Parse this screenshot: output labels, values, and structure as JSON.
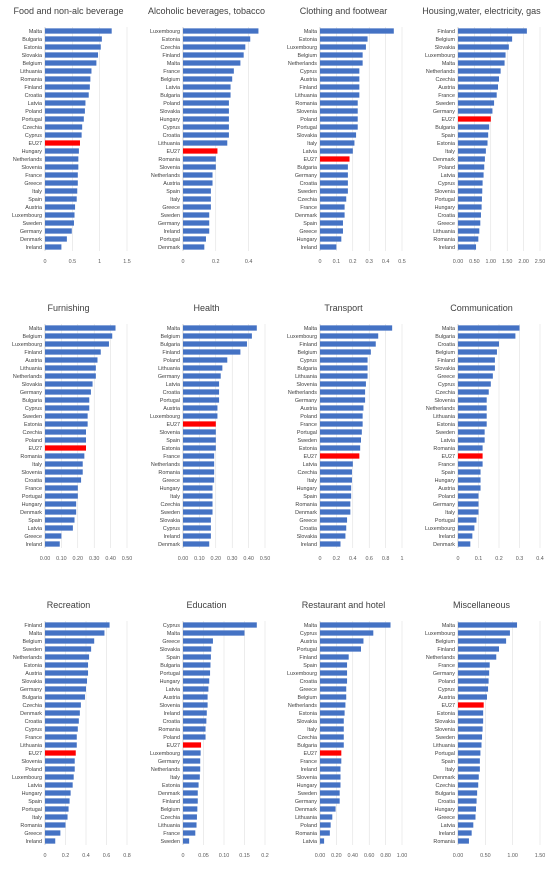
{
  "chart_data": [
    {
      "type": "bar",
      "orientation": "horizontal",
      "title": "Food and non-alc beverage",
      "xlim": [
        0,
        1.5
      ],
      "xticks": [
        0,
        0.5,
        1,
        1.5
      ],
      "xtick_labels": [
        "0",
        "0.5",
        "1",
        "1.5"
      ],
      "categories": [
        "Malta",
        "Bulgaria",
        "Estonia",
        "Slovakia",
        "Belgium",
        "Lithuania",
        "Romania",
        "Finland",
        "Croatia",
        "Latvia",
        "Poland",
        "Portugal",
        "Czechia",
        "Cyprus",
        "EU27",
        "Hungary",
        "Netherlands",
        "Slovenia",
        "France",
        "Greece",
        "Italy",
        "Spain",
        "Austria",
        "Luxembourg",
        "Sweden",
        "Germany",
        "Denmark",
        "Ireland"
      ],
      "values": [
        1.22,
        1.04,
        1.02,
        0.97,
        0.94,
        0.85,
        0.83,
        0.82,
        0.8,
        0.74,
        0.73,
        0.71,
        0.68,
        0.67,
        0.64,
        0.62,
        0.61,
        0.61,
        0.6,
        0.6,
        0.59,
        0.58,
        0.55,
        0.54,
        0.53,
        0.49,
        0.4,
        0.3
      ],
      "highlight": "EU27",
      "bar_color": "#4472c4",
      "highlight_color": "#ff0000"
    },
    {
      "type": "bar",
      "orientation": "horizontal",
      "title": "Alcoholic beverages, tobacco",
      "xlim": [
        0,
        0.5
      ],
      "xticks": [
        0,
        0.2,
        0.4
      ],
      "xtick_labels": [
        "0",
        "0.2",
        "0.4"
      ],
      "categories": [
        "Luxembourg",
        "Estonia",
        "Czechia",
        "Finland",
        "Malta",
        "France",
        "Belgium",
        "Latvia",
        "Bulgaria",
        "Poland",
        "Slovakia",
        "Hungary",
        "Cyprus",
        "Croatia",
        "Lithuania",
        "EU27",
        "Romania",
        "Slovenia",
        "Netherlands",
        "Austria",
        "Spain",
        "Italy",
        "Greece",
        "Sweden",
        "Germany",
        "Ireland",
        "Portugal",
        "Denmark"
      ],
      "values": [
        0.46,
        0.41,
        0.38,
        0.37,
        0.35,
        0.31,
        0.3,
        0.29,
        0.29,
        0.28,
        0.28,
        0.28,
        0.28,
        0.28,
        0.27,
        0.21,
        0.2,
        0.2,
        0.18,
        0.18,
        0.17,
        0.17,
        0.17,
        0.16,
        0.16,
        0.16,
        0.14,
        0.13
      ],
      "highlight": "EU27",
      "bar_color": "#4472c4",
      "highlight_color": "#ff0000"
    },
    {
      "type": "bar",
      "orientation": "horizontal",
      "title": "Clothing and footwear",
      "xlim": [
        0,
        0.5
      ],
      "xticks": [
        0,
        0.1,
        0.2,
        0.3,
        0.4,
        0.5
      ],
      "xtick_labels": [
        "0",
        "0.1",
        "0.2",
        "0.3",
        "0.4",
        "0.5"
      ],
      "categories": [
        "Malta",
        "Estonia",
        "Luxembourg",
        "Belgium",
        "Netherlands",
        "Cyprus",
        "Austria",
        "Finland",
        "Lithuania",
        "Romania",
        "Slovenia",
        "Poland",
        "Portugal",
        "Slovakia",
        "Italy",
        "Latvia",
        "EU27",
        "Bulgaria",
        "Germany",
        "Croatia",
        "Sweden",
        "Czechia",
        "France",
        "Denmark",
        "Spain",
        "Greece",
        "Hungary",
        "Ireland"
      ],
      "values": [
        0.45,
        0.29,
        0.28,
        0.26,
        0.26,
        0.24,
        0.24,
        0.24,
        0.24,
        0.23,
        0.23,
        0.23,
        0.23,
        0.22,
        0.21,
        0.2,
        0.18,
        0.17,
        0.17,
        0.17,
        0.17,
        0.16,
        0.15,
        0.15,
        0.14,
        0.14,
        0.13,
        0.1
      ],
      "highlight": "EU27",
      "bar_color": "#4472c4",
      "highlight_color": "#ff0000"
    },
    {
      "type": "bar",
      "orientation": "horizontal",
      "title": "Housing,water, electricity, gas",
      "xlim": [
        0,
        2.5
      ],
      "xticks": [
        0,
        0.5,
        1,
        1.5,
        2,
        2.5
      ],
      "xtick_labels": [
        "0.00",
        "0.50",
        "1.00",
        "1.50",
        "2.00",
        "2.50"
      ],
      "categories": [
        "Finland",
        "Belgium",
        "Slovakia",
        "Luxembourg",
        "Malta",
        "Netherlands",
        "Czechia",
        "Austria",
        "France",
        "Sweden",
        "Germany",
        "EU27",
        "Bulgaria",
        "Spain",
        "Estonia",
        "Italy",
        "Denmark",
        "Poland",
        "Latvia",
        "Cyprus",
        "Slovenia",
        "Portugal",
        "Hungary",
        "Croatia",
        "Greece",
        "Lithuania",
        "Romania",
        "Ireland"
      ],
      "values": [
        2.1,
        1.65,
        1.55,
        1.45,
        1.42,
        1.3,
        1.25,
        1.22,
        1.18,
        1.1,
        1.05,
        1.0,
        0.95,
        0.92,
        0.9,
        0.85,
        0.82,
        0.8,
        0.78,
        0.75,
        0.74,
        0.73,
        0.72,
        0.7,
        0.68,
        0.65,
        0.62,
        0.55
      ],
      "highlight": "EU27",
      "bar_color": "#4472c4",
      "highlight_color": "#ff0000"
    },
    {
      "type": "bar",
      "orientation": "horizontal",
      "title": "Furnishing",
      "xlim": [
        0,
        0.5
      ],
      "xticks": [
        0,
        0.1,
        0.2,
        0.3,
        0.4,
        0.5
      ],
      "xtick_labels": [
        "0.00",
        "0.10",
        "0.20",
        "0.30",
        "0.40",
        "0.50"
      ],
      "categories": [
        "Malta",
        "Belgium",
        "Luxembourg",
        "Finland",
        "Austria",
        "Lithuania",
        "Netherlands",
        "Slovakia",
        "Germany",
        "Bulgaria",
        "Cyprus",
        "Sweden",
        "Estonia",
        "Czechia",
        "Poland",
        "EU27",
        "Romania",
        "Italy",
        "Slovenia",
        "Croatia",
        "France",
        "Portugal",
        "Hungary",
        "Denmark",
        "Spain",
        "Latvia",
        "Greece",
        "Ireland"
      ],
      "values": [
        0.43,
        0.41,
        0.39,
        0.34,
        0.32,
        0.31,
        0.31,
        0.29,
        0.28,
        0.27,
        0.27,
        0.26,
        0.26,
        0.25,
        0.25,
        0.25,
        0.24,
        0.23,
        0.23,
        0.22,
        0.2,
        0.2,
        0.19,
        0.19,
        0.18,
        0.17,
        0.1,
        0.09
      ],
      "highlight": "EU27",
      "bar_color": "#4472c4",
      "highlight_color": "#ff0000"
    },
    {
      "type": "bar",
      "orientation": "horizontal",
      "title": "Health",
      "xlim": [
        0,
        0.5
      ],
      "xticks": [
        0,
        0.1,
        0.2,
        0.3,
        0.4,
        0.5
      ],
      "xtick_labels": [
        "0.00",
        "0.10",
        "0.20",
        "0.30",
        "0.40",
        "0.50"
      ],
      "categories": [
        "Malta",
        "Belgium",
        "Bulgaria",
        "Finland",
        "Poland",
        "Lithuania",
        "Germany",
        "Latvia",
        "Croatia",
        "Portugal",
        "Austria",
        "Luxembourg",
        "EU27",
        "Slovenia",
        "Spain",
        "Estonia",
        "France",
        "Netherlands",
        "Romania",
        "Greece",
        "Hungary",
        "Italy",
        "Czechia",
        "Sweden",
        "Slovakia",
        "Cyprus",
        "Ireland",
        "Denmark"
      ],
      "values": [
        0.45,
        0.42,
        0.39,
        0.35,
        0.27,
        0.24,
        0.23,
        0.22,
        0.22,
        0.22,
        0.21,
        0.21,
        0.2,
        0.2,
        0.2,
        0.2,
        0.19,
        0.19,
        0.19,
        0.19,
        0.18,
        0.18,
        0.18,
        0.18,
        0.17,
        0.17,
        0.17,
        0.16
      ],
      "highlight": "EU27",
      "bar_color": "#4472c4",
      "highlight_color": "#ff0000"
    },
    {
      "type": "bar",
      "orientation": "horizontal",
      "title": "Transport",
      "xlim": [
        0,
        1
      ],
      "xticks": [
        0,
        0.2,
        0.4,
        0.6,
        0.8,
        1
      ],
      "xtick_labels": [
        "0",
        "0.2",
        "0.4",
        "0.6",
        "0.8",
        "1"
      ],
      "categories": [
        "Malta",
        "Luxembourg",
        "Finland",
        "Belgium",
        "Cyprus",
        "Bulgaria",
        "Lithuania",
        "Slovenia",
        "Netherlands",
        "Germany",
        "Austria",
        "Poland",
        "France",
        "Portugal",
        "Sweden",
        "Estonia",
        "EU27",
        "Latvia",
        "Czechia",
        "Italy",
        "Hungary",
        "Spain",
        "Romania",
        "Denmark",
        "Greece",
        "Croatia",
        "Slovakia",
        "Ireland"
      ],
      "values": [
        0.88,
        0.71,
        0.68,
        0.62,
        0.58,
        0.58,
        0.58,
        0.56,
        0.55,
        0.55,
        0.53,
        0.52,
        0.52,
        0.51,
        0.5,
        0.49,
        0.48,
        0.4,
        0.39,
        0.39,
        0.38,
        0.38,
        0.37,
        0.37,
        0.33,
        0.32,
        0.31,
        0.25
      ],
      "highlight": "EU27",
      "bar_color": "#4472c4",
      "highlight_color": "#ff0000"
    },
    {
      "type": "bar",
      "orientation": "horizontal",
      "title": "Communication",
      "xlim": [
        0,
        0.4
      ],
      "xticks": [
        0,
        0.1,
        0.2,
        0.3,
        0.4
      ],
      "xtick_labels": [
        "0",
        "0.1",
        "0.2",
        "0.3",
        "0.4"
      ],
      "categories": [
        "Malta",
        "Bulgaria",
        "Croatia",
        "Belgium",
        "Finland",
        "Slovakia",
        "Greece",
        "Cyprus",
        "Czechia",
        "Slovenia",
        "Netherlands",
        "Lithuania",
        "Estonia",
        "Sweden",
        "Latvia",
        "Romania",
        "EU27",
        "France",
        "Spain",
        "Hungary",
        "Austria",
        "Poland",
        "Germany",
        "Italy",
        "Portugal",
        "Luxembourg",
        "Ireland",
        "Denmark"
      ],
      "values": [
        0.3,
        0.28,
        0.2,
        0.19,
        0.18,
        0.18,
        0.17,
        0.16,
        0.15,
        0.14,
        0.14,
        0.14,
        0.14,
        0.13,
        0.13,
        0.12,
        0.12,
        0.12,
        0.11,
        0.11,
        0.11,
        0.1,
        0.1,
        0.1,
        0.09,
        0.08,
        0.07,
        0.06
      ],
      "highlight": "EU27",
      "bar_color": "#4472c4",
      "highlight_color": "#ff0000"
    },
    {
      "type": "bar",
      "orientation": "horizontal",
      "title": "Recreation",
      "xlim": [
        0,
        0.8
      ],
      "xticks": [
        0,
        0.2,
        0.4,
        0.6,
        0.8
      ],
      "xtick_labels": [
        "0",
        "0.2",
        "0.4",
        "0.6",
        "0.8"
      ],
      "categories": [
        "Finland",
        "Malta",
        "Belgium",
        "Sweden",
        "Netherlands",
        "Estonia",
        "Austria",
        "Slovakia",
        "Germany",
        "Bulgaria",
        "Czechia",
        "Denmark",
        "Croatia",
        "Cyprus",
        "France",
        "Lithuania",
        "EU27",
        "Slovenia",
        "Poland",
        "Luxembourg",
        "Latvia",
        "Hungary",
        "Spain",
        "Portugal",
        "Italy",
        "Romania",
        "Greece",
        "Ireland"
      ],
      "values": [
        0.63,
        0.58,
        0.48,
        0.45,
        0.43,
        0.42,
        0.42,
        0.41,
        0.4,
        0.39,
        0.35,
        0.34,
        0.33,
        0.32,
        0.31,
        0.31,
        0.3,
        0.29,
        0.29,
        0.28,
        0.27,
        0.25,
        0.24,
        0.23,
        0.22,
        0.2,
        0.15,
        0.1
      ],
      "highlight": "EU27",
      "bar_color": "#4472c4",
      "highlight_color": "#ff0000"
    },
    {
      "type": "bar",
      "orientation": "horizontal",
      "title": "Education",
      "xlim": [
        0,
        0.2
      ],
      "xticks": [
        0,
        0.05,
        0.1,
        0.15,
        0.2
      ],
      "xtick_labels": [
        "0",
        "0.05",
        "0.10",
        "0.15",
        "0.2"
      ],
      "categories": [
        "Cyprus",
        "Malta",
        "Greece",
        "Slovakia",
        "Spain",
        "Bulgaria",
        "Portugal",
        "Hungary",
        "Latvia",
        "Austria",
        "Slovenia",
        "Ireland",
        "Croatia",
        "Romania",
        "Poland",
        "EU27",
        "Luxembourg",
        "Germany",
        "Netherlands",
        "Italy",
        "Estonia",
        "Denmark",
        "Finland",
        "Belgium",
        "Czechia",
        "Lithuania",
        "France",
        "Sweden"
      ],
      "values": [
        0.18,
        0.15,
        0.073,
        0.069,
        0.068,
        0.067,
        0.066,
        0.064,
        0.062,
        0.06,
        0.06,
        0.058,
        0.057,
        0.055,
        0.055,
        0.044,
        0.043,
        0.042,
        0.042,
        0.041,
        0.038,
        0.036,
        0.036,
        0.035,
        0.034,
        0.033,
        0.03,
        0.015
      ],
      "highlight": "EU27",
      "bar_color": "#4472c4",
      "highlight_color": "#ff0000"
    },
    {
      "type": "bar",
      "orientation": "horizontal",
      "title": "Restaurant and hotel",
      "xlim": [
        0,
        1.0
      ],
      "xticks": [
        0,
        0.2,
        0.4,
        0.6,
        0.8,
        1.0
      ],
      "xtick_labels": [
        "0.00",
        "0.20",
        "0.40",
        "0.60",
        "0.80",
        "1.00"
      ],
      "categories": [
        "Malta",
        "Cyprus",
        "Austria",
        "Portugal",
        "Finland",
        "Spain",
        "Luxembourg",
        "Croatia",
        "Greece",
        "Belgium",
        "Netherlands",
        "Estonia",
        "Slovakia",
        "Italy",
        "Czechia",
        "Bulgaria",
        "EU27",
        "France",
        "Ireland",
        "Slovenia",
        "Hungary",
        "Sweden",
        "Germany",
        "Denmark",
        "Lithuania",
        "Poland",
        "Romania",
        "Latvia"
      ],
      "values": [
        0.86,
        0.65,
        0.53,
        0.5,
        0.35,
        0.33,
        0.33,
        0.33,
        0.32,
        0.32,
        0.31,
        0.3,
        0.29,
        0.29,
        0.29,
        0.29,
        0.26,
        0.26,
        0.25,
        0.25,
        0.25,
        0.24,
        0.24,
        0.19,
        0.15,
        0.13,
        0.12,
        0.05
      ],
      "highlight": "EU27",
      "bar_color": "#4472c4",
      "highlight_color": "#ff0000"
    },
    {
      "type": "bar",
      "orientation": "horizontal",
      "title": "Miscellaneous",
      "xlim": [
        0,
        1.5
      ],
      "xticks": [
        0,
        0.5,
        1,
        1.5
      ],
      "xtick_labels": [
        "0.00",
        "0.50",
        "1.00",
        "1.50"
      ],
      "categories": [
        "Malta",
        "Luxembourg",
        "Belgium",
        "Finland",
        "Netherlands",
        "France",
        "Germany",
        "Poland",
        "Cyprus",
        "Austria",
        "EU27",
        "Estonia",
        "Slovakia",
        "Slovenia",
        "Sweden",
        "Lithuania",
        "Portugal",
        "Spain",
        "Italy",
        "Denmark",
        "Czechia",
        "Bulgaria",
        "Croatia",
        "Hungary",
        "Greece",
        "Latvia",
        "Ireland",
        "Romania"
      ],
      "values": [
        1.08,
        0.95,
        0.88,
        0.75,
        0.7,
        0.58,
        0.57,
        0.56,
        0.55,
        0.53,
        0.47,
        0.46,
        0.46,
        0.45,
        0.44,
        0.43,
        0.41,
        0.4,
        0.4,
        0.38,
        0.37,
        0.35,
        0.34,
        0.33,
        0.32,
        0.28,
        0.25,
        0.2
      ],
      "highlight": "EU27",
      "bar_color": "#4472c4",
      "highlight_color": "#ff0000"
    }
  ]
}
